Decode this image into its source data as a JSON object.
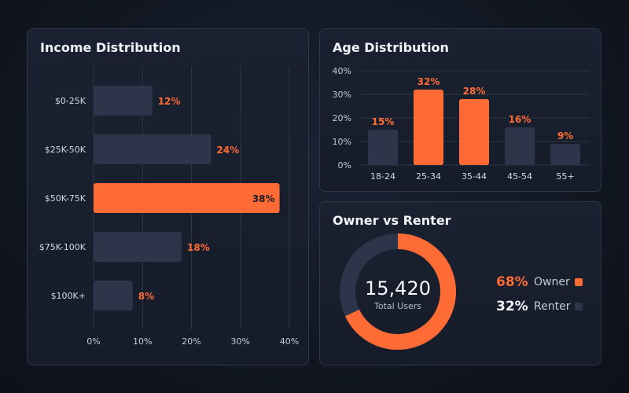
{
  "colors": {
    "accent": "#ff6b35",
    "muted_bar": "#2c3549",
    "grid": "#2d3546",
    "text": "#e8ebf2"
  },
  "chart_data": [
    {
      "type": "bar",
      "orientation": "horizontal",
      "title": "Income Distribution",
      "categories": [
        "$0-25K",
        "$25K-50K",
        "$50K-75K",
        "$75K-100K",
        "$100K+"
      ],
      "values": [
        12,
        24,
        38,
        18,
        8
      ],
      "value_labels": [
        "12%",
        "24%",
        "38%",
        "18%",
        "8%"
      ],
      "highlight_index": 2,
      "xlim": [
        0,
        40
      ],
      "x_ticks": [
        "0%",
        "10%",
        "20%",
        "30%",
        "40%"
      ],
      "grid": true
    },
    {
      "type": "bar",
      "orientation": "vertical",
      "title": "Age Distribution",
      "categories": [
        "18-24",
        "25-34",
        "35-44",
        "45-54",
        "55+"
      ],
      "values": [
        15,
        32,
        28,
        16,
        9
      ],
      "value_labels": [
        "15%",
        "32%",
        "28%",
        "16%",
        "9%"
      ],
      "highlight_indices": [
        1,
        2
      ],
      "ylim": [
        0,
        40
      ],
      "y_ticks": [
        "40%",
        "30%",
        "20%",
        "10%",
        "0%"
      ],
      "grid": true
    },
    {
      "type": "pie",
      "style": "donut",
      "title": "Owner vs Renter",
      "center_value": "15,420",
      "center_label": "Total Users",
      "slices": [
        {
          "name": "Owner",
          "value": 68,
          "pct_label": "68%"
        },
        {
          "name": "Renter",
          "value": 32,
          "pct_label": "32%"
        }
      ]
    }
  ]
}
